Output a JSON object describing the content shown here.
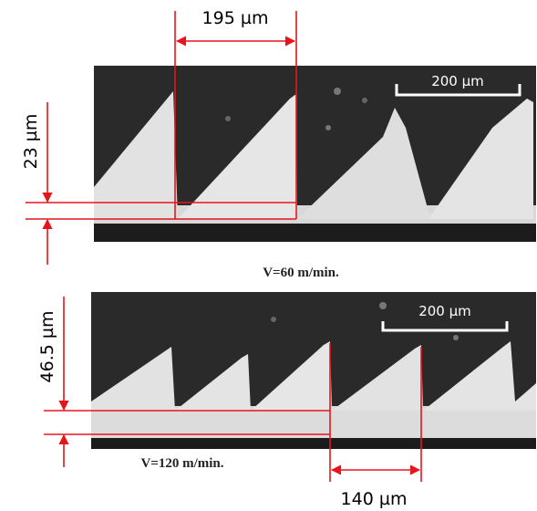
{
  "panels": [
    {
      "dimension_top": "195 µm",
      "scale_bar": "200 µm",
      "dimension_left": "23 µm",
      "caption": "V=60 m/min."
    },
    {
      "scale_bar": "200 µm",
      "dimension_left": "46.5 µm",
      "caption": "V=120 m/min.",
      "dimension_bottom": "140 µm"
    }
  ]
}
